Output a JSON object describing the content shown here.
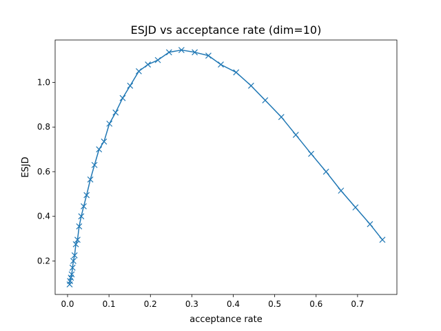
{
  "chart_data": {
    "type": "line",
    "title": "ESJD vs acceptance rate (dim=10)",
    "xlabel": "acceptance rate",
    "ylabel": "ESJD",
    "xlim": [
      -0.03,
      0.795
    ],
    "ylim": [
      0.05,
      1.19
    ],
    "xticks": [
      0.0,
      0.1,
      0.2,
      0.3,
      0.4,
      0.5,
      0.6,
      0.7
    ],
    "xtick_labels": [
      "0.0",
      "0.1",
      "0.2",
      "0.3",
      "0.4",
      "0.5",
      "0.6",
      "0.7"
    ],
    "yticks": [
      0.2,
      0.4,
      0.6,
      0.8,
      1.0
    ],
    "ytick_labels": [
      "0.2",
      "0.4",
      "0.6",
      "0.8",
      "1.0"
    ],
    "grid": false,
    "marker": "x",
    "color": "#1f77b4",
    "series": [
      {
        "name": "ESJD",
        "x": [
          0.005,
          0.006,
          0.008,
          0.01,
          0.012,
          0.014,
          0.017,
          0.02,
          0.024,
          0.028,
          0.033,
          0.039,
          0.046,
          0.055,
          0.065,
          0.076,
          0.088,
          0.101,
          0.116,
          0.133,
          0.151,
          0.172,
          0.194,
          0.218,
          0.245,
          0.275,
          0.307,
          0.34,
          0.37,
          0.407,
          0.443,
          0.477,
          0.516,
          0.551,
          0.588,
          0.624,
          0.66,
          0.695,
          0.73,
          0.76
        ],
        "y": [
          0.095,
          0.11,
          0.125,
          0.14,
          0.17,
          0.2,
          0.225,
          0.275,
          0.295,
          0.355,
          0.4,
          0.445,
          0.495,
          0.565,
          0.63,
          0.7,
          0.735,
          0.815,
          0.865,
          0.93,
          0.985,
          1.05,
          1.08,
          1.1,
          1.135,
          1.145,
          1.135,
          1.12,
          1.08,
          1.045,
          0.985,
          0.92,
          0.845,
          0.765,
          0.68,
          0.6,
          0.515,
          0.44,
          0.365,
          0.295
        ]
      }
    ]
  }
}
